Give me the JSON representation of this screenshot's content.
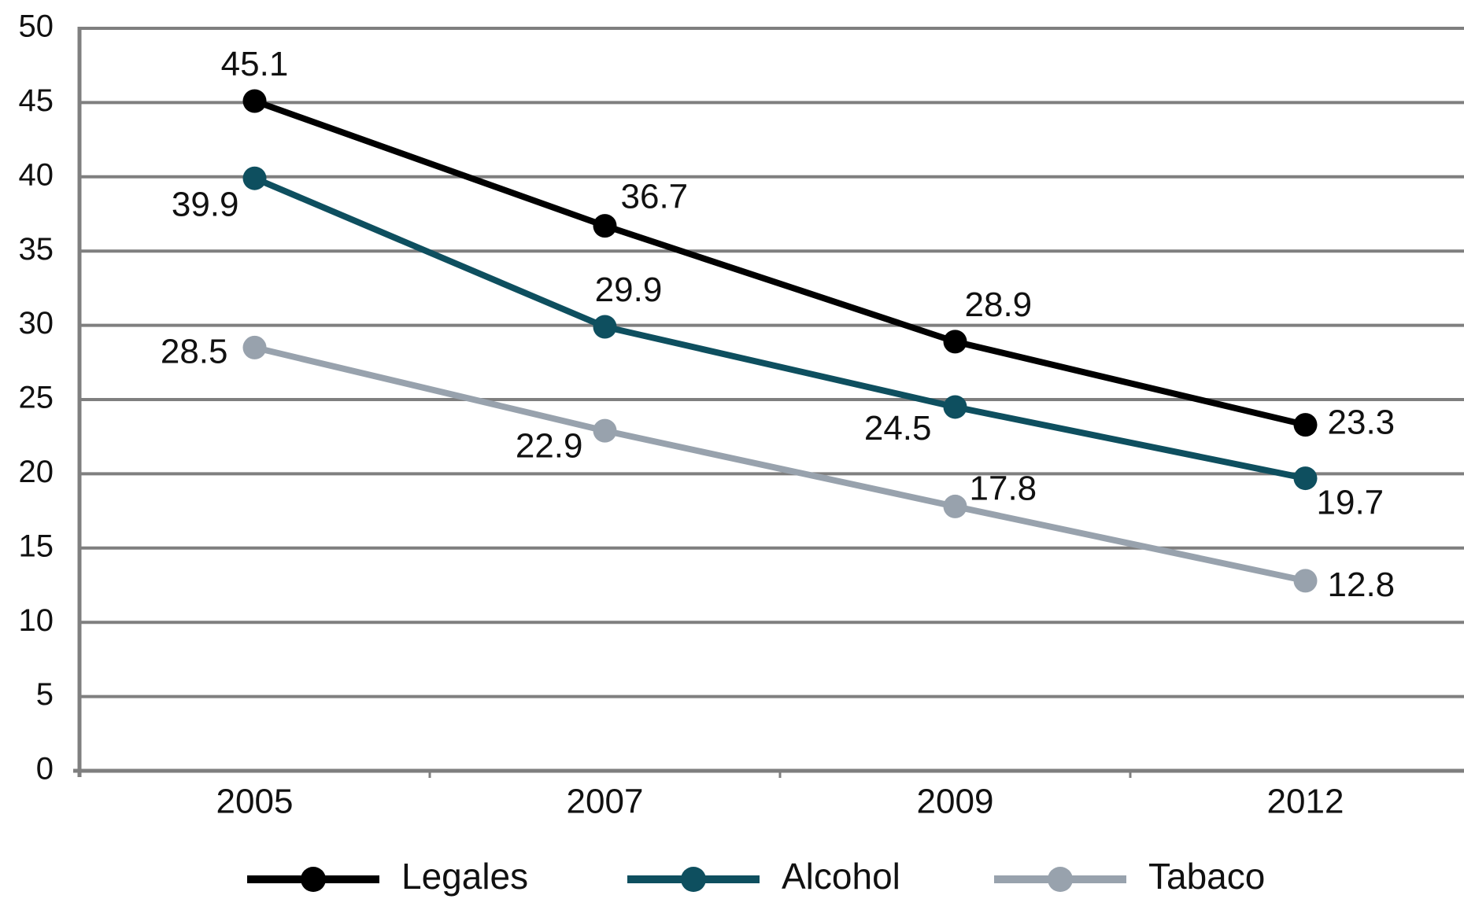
{
  "chart_data": {
    "type": "line",
    "categories": [
      "2005",
      "2007",
      "2009",
      "2012"
    ],
    "series": [
      {
        "name": "Legales",
        "color": "#000000",
        "values": [
          45.1,
          36.7,
          28.9,
          23.3
        ]
      },
      {
        "name": "Alcohol",
        "color": "#0e4f5f",
        "values": [
          39.9,
          29.9,
          24.5,
          19.7
        ]
      },
      {
        "name": "Tabaco",
        "color": "#98a2ad",
        "values": [
          28.5,
          22.9,
          17.8,
          12.8
        ]
      }
    ],
    "ylim": [
      0,
      50
    ],
    "yticks": [
      0,
      5,
      10,
      15,
      20,
      25,
      30,
      35,
      40,
      45,
      50
    ],
    "grid": true,
    "legend": "bottom"
  }
}
